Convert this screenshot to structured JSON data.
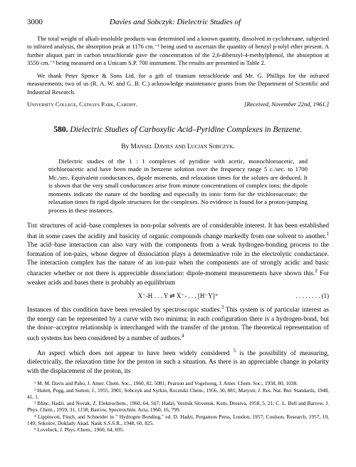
{
  "header": {
    "page_number": "3000",
    "running_title": "Davies and Sobczyk: Dielectric Studies of"
  },
  "prior_article_end": {
    "para1": "The total weight of alkali-insoluble products was determined and a known quantity, dissolved in cyclohexane, subjected to infrared analysis, the absorption peak at 1176 cm.⁻¹ being used to ascertain the quantity of benzyl p-tolyl ether present. A further aliquot part in carbon tetrachloride gave the concentration of the 2,6-dibenzyl-4-methylphenol, the absorption at 3550 cm.⁻¹ being measured on a Unicam S.P. 700 instrument. The results are presented in Table 2.",
    "para2": "We thank Peter Spence & Sons Ltd. for a gift of titanium tetrachloride and Mr. G. Phillips for the infrared measurements; two of us (R. A. W. and G. B. C.) acknowledge maintenance grants from the Department of Scientific and Industrial Research.",
    "affiliation": "University College, Cathays Park, Cardiff.",
    "received": "[Received, November 22nd, 1961.]"
  },
  "article": {
    "number": "580.",
    "title": "Dielectric Studies of Carboxylic Acid–Pyridine Complexes in Benzene.",
    "by": "By",
    "authors": "Mansel Davies and Lucjan Sobczyk.",
    "abstract": "Dielectric studies of the 1 : 1 complexes of pyridine with acetic, monochloroacetic, and trichloroacetic acid have been made in benzene solution over the frequency range 5 c./sec. to 1700 Mc./sec. Equivalent conductances, dipole moments, and relaxation times for the solutes are deduced. It is shown that the very small conductances arise from minute concentrations of complex ions; the dipole moments indicate the nature of the bonding and especially its ionic form for the trichloroacetate; the relaxation times fit rigid dipole structures for the complexes. No evidence is found for a proton-jumping process in these instances.",
    "body_p1": "The structures of acid–base complexes in non-polar solvents are of considerable interest. It has been established that in some cases the acidity and basicity of organic compounds change markedly from one solvent to another.¹ The acid–base interaction can also vary with the components from a weak hydrogen-bonding process to the formation of ion-pairs, whose degree of dissociation plays a determinative role in the electrolytic conductance. The interaction complex has the nature of an ion-pair when the components are of strongly acidic and basic character whether or not there is appreciable dissociation: dipole-moment measurements have shown this.² For weaker acids and bases there is probably an equilibrium",
    "body_firstword": "The",
    "equation": "X⁻-H . . . Y ⇌ X⁻- . . . [H⁻Y]⁺",
    "eq_label": ". . . . . . . . (1)",
    "body_p2": "Instances of this condition have been revealed by spectroscopic studies.³ This system is of particular interest as the energy can be represented by a curve with two minima; in each configuration there is a hydrogen-bond, but the donor–acceptor relationship is interchanged with the transfer of the proton. The theoretical representation of such systems has been considered by a number of authors.⁴",
    "body_p3": "An aspect which does not appear to have been widely considered ⁵ is the possibility of measuring, dielectrically, the relaxation time for the proton in such a situation. As there is an appreciable change in polarity with the displacement of the proton, its"
  },
  "footnotes": {
    "f1": "¹ M. M. Davis and Pabo, J. Amer. Chem. Soc., 1960, 82, 5081; Pearson and Vogelsong, J. Amer. Chem. Soc., 1958, 80, 1038.",
    "f2": "² Hulett, Pegg, and Sutton, J., 1955, 3901; Sobczyk and Syrkin, Roczniki Chem., 1956, 30, 881; Maryott, J. Res. Nat. Bur. Standards, 1948, 41, 1.",
    "f3": "³ Blinc, Hadzi, and Novak, Z. Elektrochem., 1960, 64, 567; Hadzi, Vestnik Slovensk. Kem. Drustva, 1958, 5, 21; C. L. Bell and Barrow, J. Phys. Chem., 1959, 31, 1158; Barrow, Spectrochim. Acta, 1960, 16, 799.",
    "f4": "⁴ Lippincott, Finch, and Schneider in \" Hydrogen Bonding,\" ed. D. Hadzi, Pergamon Press, London, 1957; Coulson, Research, 1957, 10, 149; Sokolov, Doklady Akad. Nauk S.S.S.R., 1948, 60, 825.",
    "f5": "⁵ Loveluck, J. Phys. Chem., 1960, 64, 695."
  }
}
